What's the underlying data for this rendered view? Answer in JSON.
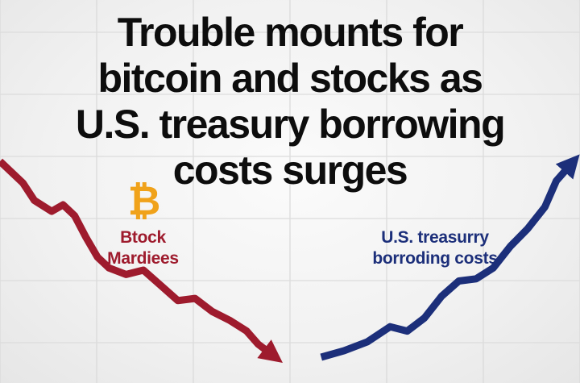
{
  "title_lines": [
    "Trouble mounts for",
    "bitcoin and stocks as",
    "U.S. treasury borrowing",
    "costs surges"
  ],
  "icons": {
    "bitcoin": {
      "name": "bitcoin-icon",
      "glyph": "₿",
      "color": "#f0a21a"
    }
  },
  "chart_data": {
    "type": "line",
    "grid": true,
    "series": [
      {
        "name": "Btock Mardiees",
        "name_lines": [
          "Btock",
          "Mardiees"
        ],
        "color": "#9e1b2d",
        "trend": "down",
        "values": [
          [
            0,
            100
          ],
          [
            4,
            90
          ],
          [
            6,
            82
          ],
          [
            9,
            77
          ],
          [
            11,
            80
          ],
          [
            13,
            75
          ],
          [
            15,
            65
          ],
          [
            17,
            56
          ],
          [
            19,
            51
          ],
          [
            22,
            48
          ],
          [
            25,
            50
          ],
          [
            28,
            43
          ],
          [
            31,
            36
          ],
          [
            34,
            37
          ],
          [
            37,
            31
          ],
          [
            40,
            27
          ],
          [
            43,
            22
          ],
          [
            45,
            16
          ],
          [
            48,
            10
          ]
        ]
      },
      {
        "name": "U.S. treasurry borroding costs",
        "name_lines": [
          "U.S. treasurry",
          "borroding costs"
        ],
        "color": "#1c2f7a",
        "trend": "up",
        "values": [
          [
            56,
            10
          ],
          [
            60,
            13
          ],
          [
            64,
            17
          ],
          [
            68,
            24
          ],
          [
            71,
            22
          ],
          [
            74,
            28
          ],
          [
            77,
            38
          ],
          [
            80,
            45
          ],
          [
            83,
            46
          ],
          [
            86,
            51
          ],
          [
            89,
            61
          ],
          [
            92,
            69
          ],
          [
            95,
            79
          ],
          [
            97,
            91
          ],
          [
            100,
            100
          ]
        ]
      }
    ]
  }
}
